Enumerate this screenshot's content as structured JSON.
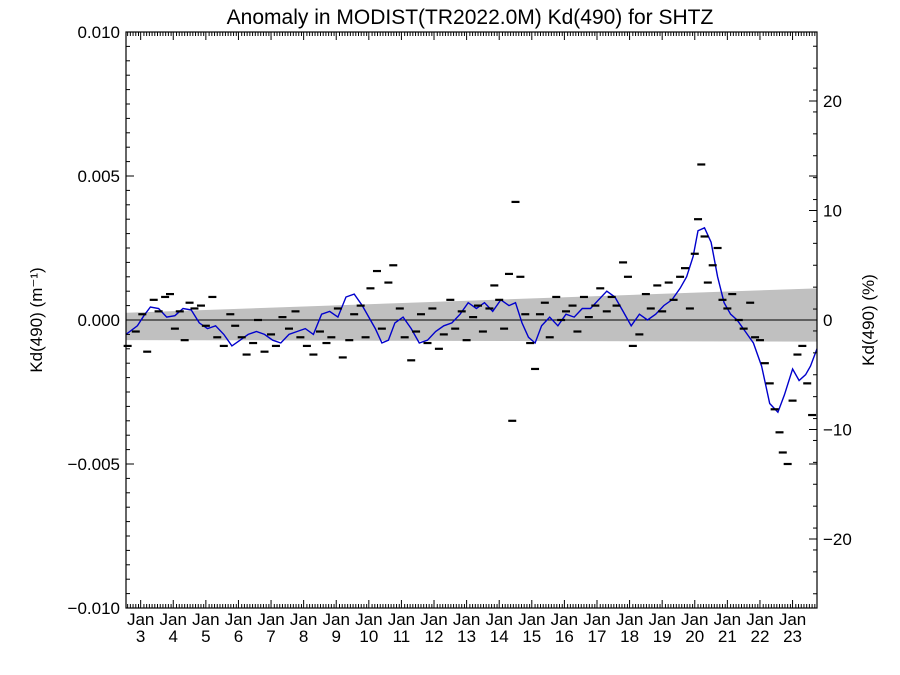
{
  "chart_data": {
    "type": "scatter",
    "title": "Anomaly in MODIST(TR2022.0M) Kd(490) for SHTZ",
    "ylabel_left": "Kd(490) (m⁻¹)",
    "ylabel_right": "Kd(490) (%)",
    "xlabel": "",
    "ylim": [
      -0.01,
      0.01
    ],
    "yticks": [
      "0.010",
      "0.005",
      "0.000",
      "−0.005",
      "−0.010"
    ],
    "y2lim": [
      -26.3,
      26.3
    ],
    "y2ticks": [
      "20",
      "10",
      "0",
      "−10",
      "−20"
    ],
    "x_tick_top": [
      "Jan",
      "Jan",
      "Jan",
      "Jan",
      "Jan",
      "Jan",
      "Jan",
      "Jan",
      "Jan",
      "Jan",
      "Jan",
      "Jan",
      "Jan",
      "Jan",
      "Jan",
      "Jan",
      "Jan",
      "Jan",
      "Jan",
      "Jan",
      "Jan"
    ],
    "x_tick_bottom": [
      "3",
      "4",
      "5",
      "6",
      "7",
      "8",
      "9",
      "10",
      "11",
      "12",
      "13",
      "14",
      "15",
      "16",
      "17",
      "18",
      "19",
      "20",
      "21",
      "22",
      "23"
    ],
    "xlim": [
      2002.55,
      2023.75
    ],
    "band": {
      "start": [
        0.00025,
        -0.0007
      ],
      "end": [
        0.0011,
        -0.00075
      ],
      "color": "#c0c0c0"
    },
    "zero_line_color": "#000000",
    "smooth_series": {
      "name": "",
      "color": "#0000cc",
      "x": [
        2002.55,
        2002.9,
        2003.1,
        2003.3,
        2003.55,
        2003.8,
        2004.05,
        2004.3,
        2004.55,
        2004.8,
        2005.05,
        2005.3,
        2005.55,
        2005.8,
        2006.05,
        2006.3,
        2006.55,
        2006.8,
        2007.05,
        2007.3,
        2007.55,
        2007.8,
        2008.05,
        2008.3,
        2008.55,
        2008.8,
        2009.05,
        2009.3,
        2009.55,
        2009.8,
        2010.0,
        2010.2,
        2010.4,
        2010.6,
        2010.8,
        2011.05,
        2011.3,
        2011.55,
        2011.8,
        2012.05,
        2012.3,
        2012.55,
        2012.8,
        2013.05,
        2013.3,
        2013.55,
        2013.8,
        2014.05,
        2014.3,
        2014.5,
        2014.7,
        2014.9,
        2015.1,
        2015.3,
        2015.55,
        2015.8,
        2016.05,
        2016.3,
        2016.55,
        2016.8,
        2017.05,
        2017.3,
        2017.55,
        2017.8,
        2018.05,
        2018.3,
        2018.55,
        2018.8,
        2019.05,
        2019.3,
        2019.55,
        2019.75,
        2019.95,
        2020.1,
        2020.3,
        2020.5,
        2020.7,
        2020.9,
        2021.1,
        2021.3,
        2021.55,
        2021.8,
        2022.05,
        2022.3,
        2022.55,
        2022.75,
        2023.0,
        2023.2,
        2023.4,
        2023.55,
        2023.75
      ],
      "y": [
        -0.0005,
        -0.0002,
        0.00015,
        0.00045,
        0.0004,
        0.0001,
        0.00015,
        0.0004,
        0.00035,
        -0.0001,
        -0.0003,
        -0.0002,
        -0.0005,
        -0.0009,
        -0.0007,
        -0.0005,
        -0.0004,
        -0.0005,
        -0.0007,
        -0.0008,
        -0.0005,
        -0.0004,
        -0.0003,
        -0.0005,
        0.0002,
        0.0003,
        0.0001,
        0.0008,
        0.0009,
        0.0005,
        0.0001,
        -0.0003,
        -0.0008,
        -0.0007,
        -0.0001,
        0.0001,
        -0.0003,
        -0.0008,
        -0.0007,
        -0.0004,
        -0.0002,
        -0.0001,
        0.0002,
        0.0006,
        0.0004,
        0.0006,
        0.0003,
        0.0007,
        0.0005,
        0.0006,
        -0.0001,
        -0.0006,
        -0.0008,
        -0.0002,
        0.0001,
        -0.0002,
        0.0002,
        0.0001,
        0.0004,
        0.0004,
        0.0007,
        0.001,
        0.0008,
        0.0003,
        -0.0002,
        0.0002,
        0.0,
        0.0002,
        0.0005,
        0.0007,
        0.0011,
        0.0015,
        0.0022,
        0.0031,
        0.0032,
        0.0027,
        0.0015,
        0.0006,
        0.0002,
        0.0,
        -0.0004,
        -0.0008,
        -0.0016,
        -0.0029,
        -0.0032,
        -0.0026,
        -0.0017,
        -0.0021,
        -0.0019,
        -0.0016,
        -0.001
      ]
    },
    "points": {
      "color": "#000000",
      "x": [
        2002.6,
        2002.85,
        2003.05,
        2003.2,
        2003.4,
        2003.55,
        2003.75,
        2003.9,
        2004.05,
        2004.2,
        2004.35,
        2004.5,
        2004.65,
        2004.85,
        2005.0,
        2005.2,
        2005.35,
        2005.55,
        2005.75,
        2005.9,
        2006.1,
        2006.25,
        2006.45,
        2006.6,
        2006.8,
        2007.0,
        2007.15,
        2007.35,
        2007.55,
        2007.75,
        2007.9,
        2008.1,
        2008.3,
        2008.5,
        2008.7,
        2008.85,
        2009.05,
        2009.2,
        2009.4,
        2009.55,
        2009.75,
        2009.9,
        2010.05,
        2010.25,
        2010.4,
        2010.6,
        2010.75,
        2010.95,
        2011.1,
        2011.3,
        2011.45,
        2011.6,
        2011.8,
        2011.95,
        2012.15,
        2012.3,
        2012.5,
        2012.65,
        2012.85,
        2013.0,
        2013.2,
        2013.35,
        2013.5,
        2013.7,
        2013.85,
        2014.0,
        2014.15,
        2014.3,
        2014.4,
        2014.5,
        2014.65,
        2014.8,
        2014.95,
        2015.1,
        2015.25,
        2015.4,
        2015.55,
        2015.75,
        2015.9,
        2016.05,
        2016.25,
        2016.4,
        2016.6,
        2016.75,
        2016.95,
        2017.1,
        2017.3,
        2017.45,
        2017.6,
        2017.8,
        2017.95,
        2018.1,
        2018.3,
        2018.5,
        2018.65,
        2018.85,
        2019.0,
        2019.2,
        2019.35,
        2019.55,
        2019.7,
        2019.85,
        2020.0,
        2020.1,
        2020.2,
        2020.3,
        2020.4,
        2020.55,
        2020.7,
        2020.85,
        2021.0,
        2021.15,
        2021.35,
        2021.5,
        2021.7,
        2021.85,
        2022.0,
        2022.15,
        2022.3,
        2022.45,
        2022.6,
        2022.7,
        2022.85,
        2023.0,
        2023.15,
        2023.3,
        2023.45,
        2023.6
      ],
      "y": [
        -0.0009,
        -0.0004,
        0.0002,
        -0.0011,
        0.0007,
        0.0003,
        0.0008,
        0.0009,
        -0.0003,
        0.0003,
        -0.0007,
        0.0006,
        0.0004,
        0.0005,
        -0.0002,
        0.0008,
        -0.0006,
        -0.0009,
        0.0002,
        -0.0002,
        -0.0006,
        -0.0012,
        -0.0008,
        0.0,
        -0.0011,
        -0.0005,
        -0.0009,
        0.0001,
        -0.0003,
        0.0003,
        -0.0006,
        -0.0009,
        -0.0012,
        -0.0004,
        -0.0008,
        -0.0006,
        0.0004,
        -0.0013,
        -0.0007,
        0.0002,
        0.0005,
        -0.0006,
        0.0011,
        0.0017,
        -0.0003,
        0.0013,
        0.0019,
        0.0004,
        -0.0006,
        -0.0014,
        -0.0004,
        0.0002,
        -0.0008,
        0.0004,
        -0.001,
        -0.0005,
        0.0007,
        -0.0003,
        0.0003,
        -0.0007,
        0.0001,
        0.0005,
        -0.0004,
        0.0004,
        0.0012,
        0.0007,
        -0.0003,
        0.0016,
        -0.0035,
        0.0041,
        0.0015,
        0.0002,
        -0.0008,
        -0.0017,
        0.0002,
        0.0006,
        -0.0006,
        0.0008,
        0.0,
        0.0003,
        0.0005,
        -0.0004,
        0.0008,
        0.0001,
        0.0005,
        0.0011,
        0.0003,
        0.0008,
        0.0005,
        0.002,
        0.0015,
        -0.0009,
        -0.0005,
        0.0009,
        0.0004,
        0.0012,
        0.0003,
        0.0013,
        0.0007,
        0.0015,
        0.0018,
        0.0004,
        0.0023,
        0.0035,
        0.0054,
        0.0029,
        0.0013,
        0.0019,
        0.0025,
        0.0007,
        0.0004,
        0.0009,
        0.0,
        -0.0003,
        0.0006,
        -0.0006,
        -0.0007,
        -0.0015,
        -0.0022,
        -0.0031,
        -0.0039,
        -0.0046,
        -0.005,
        -0.0028,
        -0.0012,
        -0.0009,
        -0.0022,
        -0.0033
      ]
    }
  }
}
